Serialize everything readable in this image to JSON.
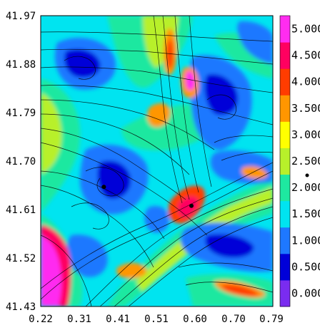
{
  "chart_data": {
    "type": "heatmap",
    "title": "",
    "xlabel": "",
    "ylabel": "",
    "xlim": [
      0.22,
      0.79
    ],
    "ylim": [
      41.43,
      41.97
    ],
    "x_ticks": [
      "0.22",
      "0.31",
      "0.41",
      "0.51",
      "0.60",
      "0.70",
      "0.79"
    ],
    "y_ticks": [
      "41.43",
      "41.52",
      "41.61",
      "41.70",
      "41.79",
      "41.88",
      "41.97"
    ],
    "colorbar": {
      "range": [
        0.0,
        5.0
      ],
      "ticks": [
        "0.000",
        "0.500",
        "1.000",
        "1.500",
        "2.000",
        "2.500",
        "3.000",
        "3.500",
        "4.000",
        "4.500",
        "5.000"
      ],
      "colors": [
        "#7a2cf0",
        "#0000d8",
        "#1e78ff",
        "#00e4f0",
        "#1ee8a0",
        "#b8f02a",
        "#ffff00",
        "#ff9600",
        "#ff3c00",
        "#ff0060",
        "#ff2cf0"
      ]
    },
    "points": [
      {
        "x": 0.375,
        "y": 41.652
      },
      {
        "x": 0.59,
        "y": 41.617
      }
    ],
    "streamlines": true,
    "grid": false
  }
}
